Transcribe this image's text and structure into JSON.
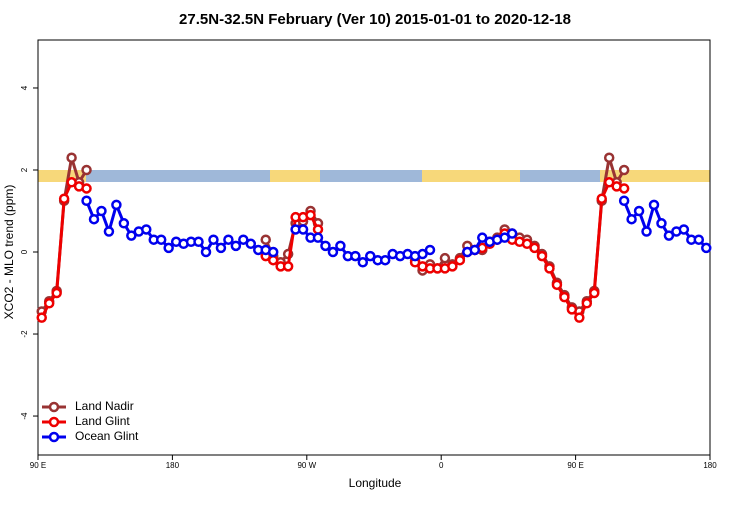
{
  "chart_data": {
    "type": "line",
    "title": "27.5N-32.5N February (Ver 10)   2015-01-01 to 2020-12-18",
    "x_label": "Longitude",
    "y_label": "XCO2 - MLO trend (ppm)",
    "xlim": [
      90,
      540
    ],
    "ylim": [
      -4.95,
      5.17
    ],
    "xticks": [
      {
        "value": 90,
        "label": "90 E"
      },
      180,
      {
        "value": 270,
        "label": "90 W"
      },
      {
        "value": 360,
        "label": "0"
      },
      {
        "value": 450,
        "label": "90 E"
      },
      {
        "value": 540,
        "label": "180"
      }
    ],
    "yticks": [
      -4,
      -2,
      0,
      2,
      4
    ],
    "legend": "bottomleft",
    "x": [
      92.5,
      97.5,
      102.5,
      107.5,
      112.5,
      117.5,
      122.5,
      127.5,
      132.5,
      137.5,
      142.5,
      147.5,
      152.5,
      157.5,
      162.5,
      167.5,
      172.5,
      177.5,
      182.5,
      187.5,
      192.5,
      197.5,
      202.5,
      207.5,
      212.5,
      217.5,
      222.5,
      227.5,
      232.5,
      237.5,
      242.5,
      247.5,
      252.5,
      257.5,
      262.5,
      267.5,
      272.5,
      277.5,
      282.5,
      287.5,
      292.5,
      297.5,
      302.5,
      307.5,
      312.5,
      317.5,
      322.5,
      327.5,
      332.5,
      337.5,
      342.5,
      347.5,
      352.5,
      357.5,
      362.5,
      367.5,
      372.5,
      377.5,
      382.5,
      387.5,
      392.5,
      397.5,
      402.5,
      407.5,
      412.5,
      417.5,
      422.5,
      427.5,
      432.5,
      437.5,
      442.5,
      447.5,
      452.5,
      457.5,
      462.5,
      467.5,
      472.5,
      477.5,
      482.5,
      487.5,
      492.5,
      497.5,
      502.5,
      507.5,
      512.5,
      517.5,
      522.5,
      527.5,
      532.5,
      537.5
    ],
    "series": [
      {
        "name": "Land Nadir",
        "color": "#993333",
        "values": [
          -1.45,
          -1.2,
          -0.95,
          1.25,
          2.3,
          1.7,
          2.0,
          null,
          null,
          null,
          null,
          null,
          null,
          null,
          null,
          null,
          null,
          null,
          null,
          null,
          null,
          null,
          null,
          null,
          null,
          null,
          null,
          null,
          null,
          null,
          0.3,
          -0.1,
          -0.25,
          -0.05,
          0.7,
          0.75,
          1.0,
          0.7,
          null,
          null,
          null,
          null,
          null,
          null,
          null,
          null,
          null,
          null,
          null,
          null,
          -0.2,
          -0.45,
          -0.3,
          -0.4,
          -0.15,
          -0.3,
          -0.15,
          0.15,
          0.05,
          0.05,
          0.25,
          0.35,
          0.55,
          0.45,
          0.35,
          0.3,
          0.15,
          -0.05,
          -0.35,
          -0.75,
          -1.05,
          -1.35,
          -1.45,
          -1.2,
          -0.95,
          1.25,
          2.3,
          1.7,
          2.0,
          null,
          null,
          null,
          null,
          null,
          null,
          null,
          null,
          null,
          null,
          null
        ]
      },
      {
        "name": "Land Glint",
        "color": "#ee0000",
        "values": [
          -1.6,
          -1.25,
          -1.0,
          1.3,
          1.7,
          1.6,
          1.55,
          null,
          null,
          null,
          null,
          null,
          null,
          null,
          null,
          null,
          null,
          null,
          null,
          null,
          null,
          null,
          null,
          null,
          null,
          null,
          null,
          null,
          null,
          null,
          -0.1,
          -0.2,
          -0.35,
          -0.35,
          0.85,
          0.85,
          0.9,
          0.55,
          null,
          null,
          null,
          null,
          null,
          null,
          null,
          null,
          null,
          null,
          null,
          null,
          -0.25,
          -0.35,
          -0.4,
          -0.4,
          -0.4,
          -0.35,
          -0.2,
          0.0,
          0.05,
          0.1,
          0.2,
          0.3,
          0.45,
          0.3,
          0.25,
          0.2,
          0.1,
          -0.1,
          -0.4,
          -0.8,
          -1.1,
          -1.4,
          -1.6,
          -1.25,
          -1.0,
          1.3,
          1.7,
          1.6,
          1.55,
          null,
          null,
          null,
          null,
          null,
          null,
          null,
          null,
          null,
          null,
          null
        ]
      },
      {
        "name": "Ocean Glint",
        "color": "#0000ee",
        "values": [
          null,
          null,
          null,
          null,
          null,
          null,
          1.25,
          0.8,
          1.0,
          0.5,
          1.15,
          0.7,
          0.4,
          0.5,
          0.55,
          0.3,
          0.3,
          0.1,
          0.25,
          0.2,
          0.25,
          0.25,
          0.0,
          0.3,
          0.1,
          0.3,
          0.15,
          0.3,
          0.2,
          0.05,
          0.05,
          0.0,
          null,
          null,
          0.55,
          0.55,
          0.35,
          0.35,
          0.15,
          0.0,
          0.15,
          -0.1,
          -0.1,
          -0.25,
          -0.1,
          -0.2,
          -0.2,
          -0.05,
          -0.1,
          -0.05,
          -0.1,
          -0.05,
          0.05,
          null,
          null,
          null,
          null,
          0.0,
          0.05,
          0.35,
          0.25,
          0.3,
          0.35,
          0.45,
          null,
          null,
          null,
          null,
          null,
          null,
          null,
          null,
          null,
          null,
          null,
          null,
          null,
          null,
          1.25,
          0.8,
          1.0,
          0.5,
          1.15,
          0.7,
          0.4,
          0.5,
          0.55,
          0.3,
          0.3,
          0.1
        ]
      }
    ]
  }
}
